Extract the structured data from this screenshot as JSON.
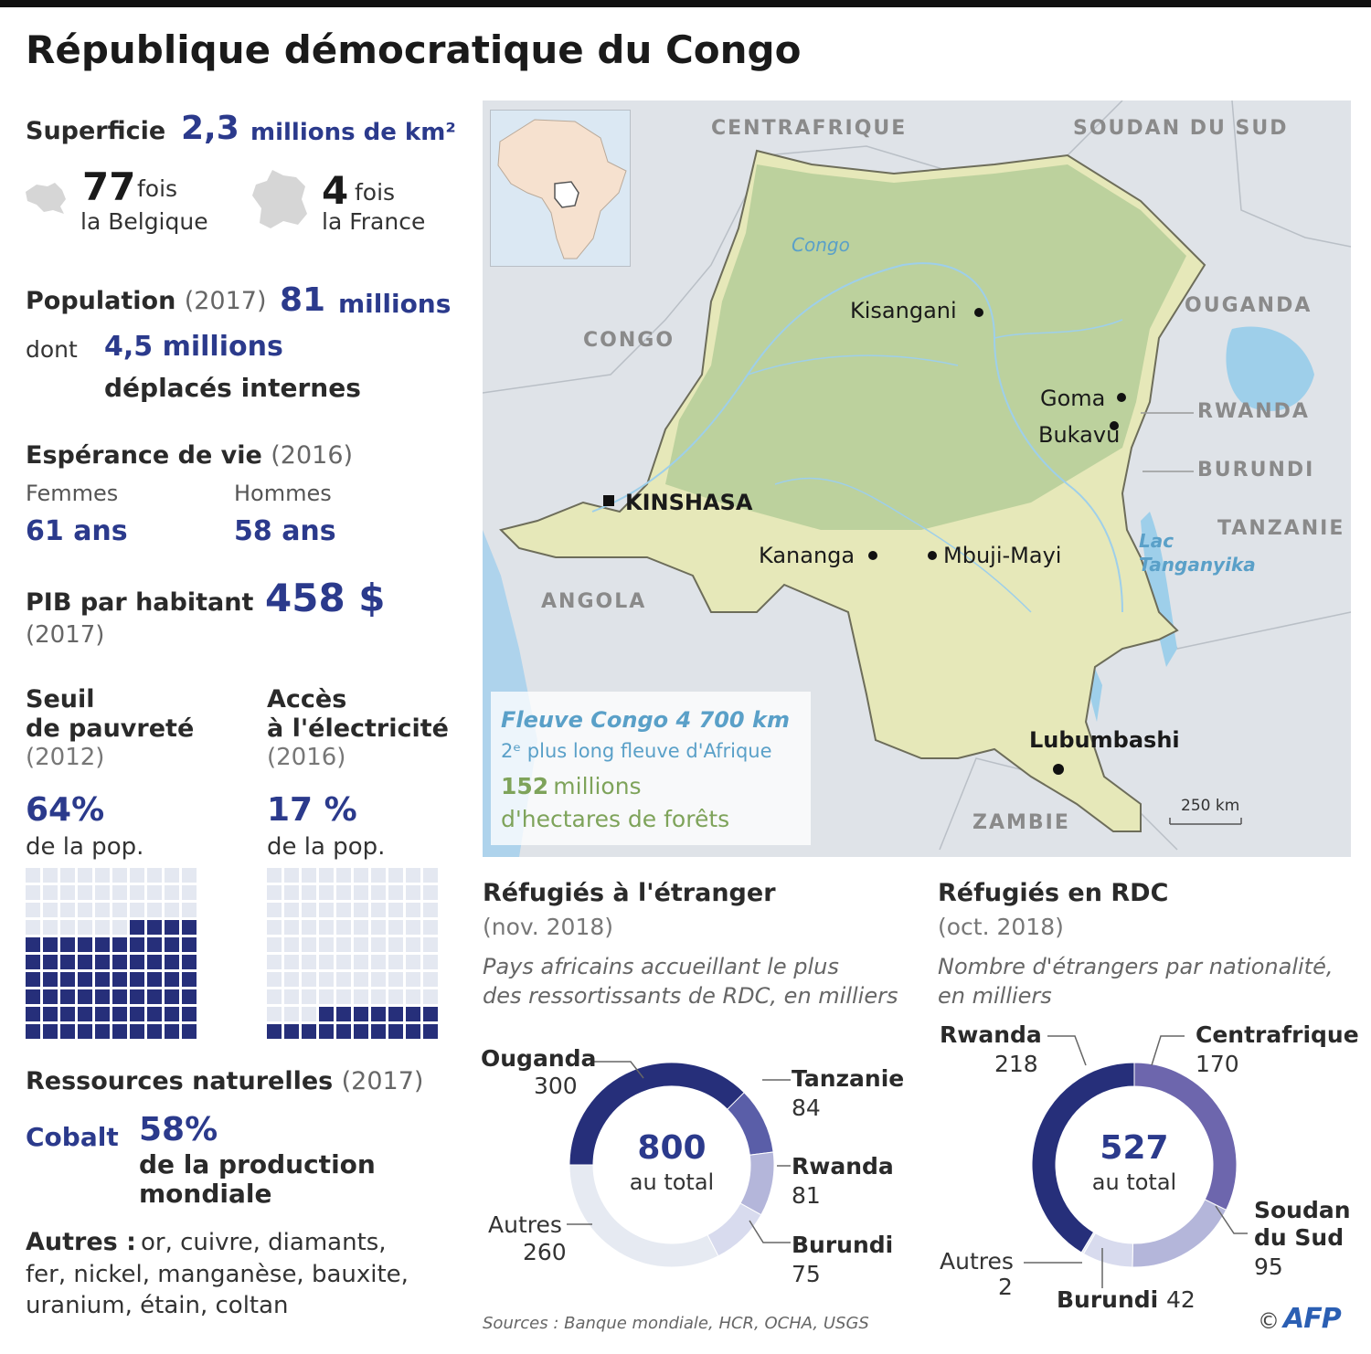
{
  "title": "République démocratique du Congo",
  "superficie": {
    "label": "Superficie",
    "value": "2,3",
    "unit": "millions de km²",
    "belgique_num": "77",
    "belgique_fois": "fois",
    "belgique_txt": "la Belgique",
    "france_num": "4",
    "france_fois": "fois",
    "france_txt": "la France"
  },
  "population": {
    "label": "Population",
    "year": "(2017)",
    "value": "81",
    "unit": "millions",
    "dont": "dont",
    "deplaces_value": "4,5 millions",
    "deplaces_txt": "déplacés internes"
  },
  "esperance": {
    "label": "Espérance de vie",
    "year": "(2016)",
    "femmes_lbl": "Femmes",
    "hommes_lbl": "Hommes",
    "femmes_val": "61 ans",
    "hommes_val": "58 ans"
  },
  "pib": {
    "label": "PIB par habitant",
    "value": "458 $",
    "year": "(2017)"
  },
  "pauvrete": {
    "line1": "Seuil",
    "line2": "de pauvreté",
    "year": "(2012)",
    "value": "64%",
    "sub": "de la pop.",
    "fraction": 0.64
  },
  "electricite": {
    "line1": "Accès",
    "line2": "à l'électricité",
    "year": "(2016)",
    "value": "17 %",
    "sub": "de la pop.",
    "fraction": 0.17
  },
  "ressources": {
    "label": "Ressources naturelles",
    "year": "(2017)",
    "cobalt": "Cobalt",
    "cobalt_val": "58%",
    "cobalt_txt1": "de la production",
    "cobalt_txt2": "mondiale",
    "autres_lbl": "Autres :",
    "autres_l1": "or, cuivre, diamants,",
    "autres_l2": "fer, nickel, manganèse, bauxite,",
    "autres_l3": "uranium, étain, coltan"
  },
  "map": {
    "countries": {
      "centrafrique": "CENTRAFRIQUE",
      "soudan_sud": "SOUDAN DU SUD",
      "ouganda": "OUGANDA",
      "congo": "CONGO",
      "rwanda": "RWANDA",
      "burundi": "BURUNDI",
      "tanzanie": "TANZANIE",
      "angola": "ANGOLA",
      "zambie": "ZAMBIE"
    },
    "river": "Congo",
    "lake1": "Lac",
    "lake2": "Tanganyika",
    "cities": {
      "kisangani": "Kisangani",
      "goma": "Goma",
      "bukavu": "Bukavu",
      "kinshasa": "KINSHASA",
      "kananga": "Kananga",
      "mbuji": "Mbuji-Mayi",
      "lubumbashi": "Lubumbashi"
    },
    "scale": "250 km",
    "legend_river": "Fleuve Congo 4 700 km",
    "legend_river_sub": "2ᵉ plus long fleuve d'Afrique",
    "legend_forest_num": "152",
    "legend_forest_unit": "millions",
    "legend_forest_txt": "d'hectares de forêts",
    "colors": {
      "forest": "#b7cf9a",
      "savanna": "#e6e8b9",
      "water": "#8fc8e6",
      "border": "#6d6d5a"
    }
  },
  "refugies_etranger": {
    "title": "Réfugiés à l'étranger",
    "date": "(nov. 2018)",
    "desc1": "Pays africains accueillant le plus",
    "desc2": "des ressortissants de RDC, en milliers",
    "total": "800",
    "total_lbl": "au total",
    "segments": [
      {
        "name": "Ouganda",
        "value": 300,
        "color": "#262f7a"
      },
      {
        "name": "Tanzanie",
        "value": 84,
        "color": "#5a5ea8"
      },
      {
        "name": "Rwanda",
        "value": 81,
        "color": "#b4b6da"
      },
      {
        "name": "Burundi",
        "value": 75,
        "color": "#d8dbee"
      },
      {
        "name": "Autres",
        "value": 260,
        "color": "#e6eaf2"
      }
    ]
  },
  "refugies_rdc": {
    "title": "Réfugiés en RDC",
    "date": "(oct. 2018)",
    "desc1": "Nombre d'étrangers par nationalité,",
    "desc2": "en milliers",
    "total": "527",
    "total_lbl": "au total",
    "segments": [
      {
        "name": "Centrafrique",
        "value": 170,
        "color": "#6d66ad"
      },
      {
        "name": "Soudan du Sud",
        "value": 95,
        "color": "#b4b6da"
      },
      {
        "name": "Burundi",
        "value": 42,
        "color": "#d8dbee"
      },
      {
        "name": "Autres",
        "value": 2,
        "color": "#e6eaf2"
      },
      {
        "name": "Rwanda",
        "value": 218,
        "color": "#262f7a"
      }
    ],
    "soudan_l1": "Soudan",
    "soudan_l2": "du Sud"
  },
  "sources": "Sources : Banque mondiale, HCR, OCHA, USGS",
  "credit": "©",
  "logo": "AFP"
}
